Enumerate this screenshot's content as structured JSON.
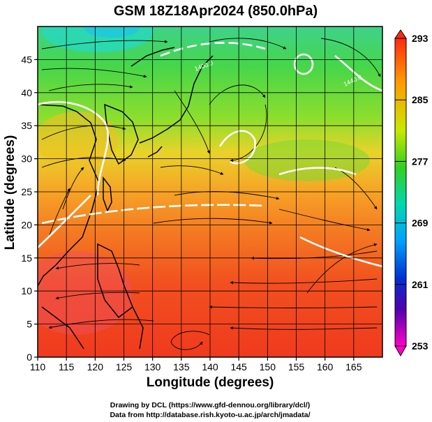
{
  "title": "GSM 18Z18Apr2024 (850.0hPa)",
  "xlabel": "Longitude (degrees)",
  "ylabel": "Latitude  (degrees)",
  "x_ticks": [
    "110",
    "115",
    "120",
    "125",
    "130",
    "135",
    "140",
    "145",
    "150",
    "155",
    "160",
    "165"
  ],
  "y_ticks": [
    "0",
    "5",
    "10",
    "15",
    "20",
    "25",
    "30",
    "35",
    "40",
    "45"
  ],
  "colorbar_ticks": [
    "293",
    "285",
    "277",
    "269",
    "261",
    "253"
  ],
  "contour_labels": [
    "1400.0",
    "1440.0"
  ],
  "credit_line1": "Drawing by DCL (https://www.gfd-dennou.org/library/dcl/)",
  "credit_line2": "Data from http://database.rish.kyoto-u.ac.jp/arch/jmadata/",
  "map": {
    "type": "filled contour with streamlines",
    "variable_range_K": [
      253,
      293
    ],
    "lon_range": [
      110,
      170
    ],
    "lat_range": [
      0,
      50
    ],
    "grid": true,
    "colormap": [
      "#e000e0",
      "#0000a0",
      "#0060ff",
      "#00e0ff",
      "#30e020",
      "#f0f000",
      "#ff8000",
      "#ff2000"
    ],
    "colors": {
      "warm": "#f04a25",
      "green": "#45d24a",
      "contour": "#ffffff",
      "streamline": "#000000"
    }
  }
}
